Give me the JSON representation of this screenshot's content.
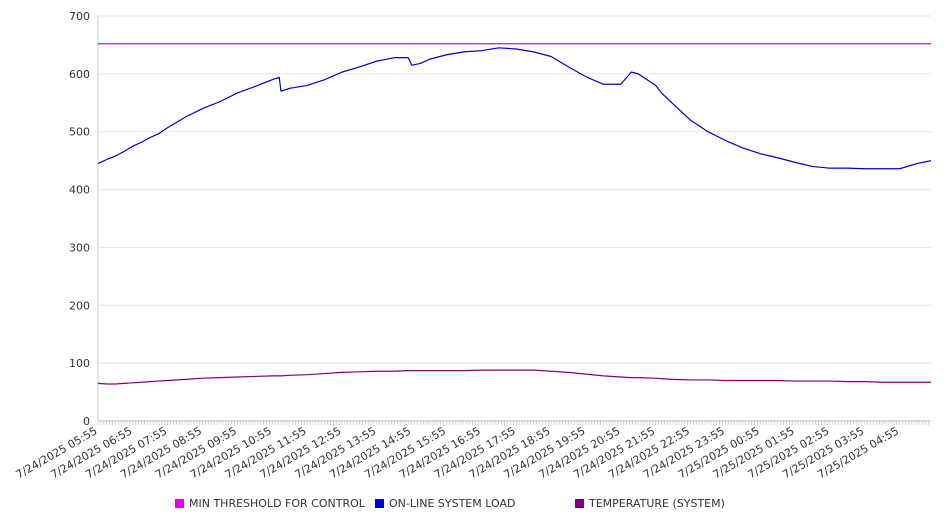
{
  "chart_data": {
    "type": "line",
    "title": "",
    "xlabel": "",
    "ylabel": "",
    "ylim": [
      0,
      700
    ],
    "yticks": [
      0,
      100,
      200,
      300,
      400,
      500,
      600,
      700
    ],
    "grid": true,
    "legend_position": "bottom",
    "x_ticks": [
      "7/24/2025 05:55",
      "7/24/2025 06:55",
      "7/24/2025 07:55",
      "7/24/2025 08:55",
      "7/24/2025 09:55",
      "7/24/2025 10:55",
      "7/24/2025 11:55",
      "7/24/2025 12:55",
      "7/24/2025 13:55",
      "7/24/2025 14:55",
      "7/24/2025 15:55",
      "7/24/2025 16:55",
      "7/24/2025 17:55",
      "7/24/2025 18:55",
      "7/24/2025 19:55",
      "7/24/2025 20:55",
      "7/24/2025 21:55",
      "7/24/2025 22:55",
      "7/24/2025 23:55",
      "7/25/2025 00:55",
      "7/25/2025 01:55",
      "7/25/2025 02:55",
      "7/25/2025 03:55",
      "7/25/2025 04:55"
    ],
    "x_hours": [
      0,
      0.25,
      0.5,
      0.75,
      1,
      1.25,
      1.5,
      1.75,
      2,
      2.5,
      3,
      3.5,
      4,
      4.5,
      5,
      5.2,
      5.25,
      5.5,
      6,
      6.5,
      7,
      7.5,
      8,
      8.5,
      8.9,
      9,
      9.25,
      9.5,
      10,
      10.5,
      11,
      11.5,
      12,
      12.5,
      13,
      13.5,
      14,
      14.5,
      15,
      15.3,
      15.5,
      16,
      16.2,
      16.5,
      17,
      17.5,
      18,
      18.5,
      19,
      19.5,
      20,
      20.5,
      21,
      21.5,
      22,
      22.5,
      23,
      23.5,
      23.9
    ],
    "series": [
      {
        "name": "MIN THRESHOLD FOR CONTROL",
        "color": "#e600e6",
        "values": [
          652,
          652,
          652,
          652,
          652,
          652,
          652,
          652,
          652,
          652,
          652,
          652,
          652,
          652,
          652,
          652,
          652,
          652,
          652,
          652,
          652,
          652,
          652,
          652,
          652,
          652,
          652,
          652,
          652,
          652,
          652,
          652,
          652,
          652,
          652,
          652,
          652,
          652,
          652,
          652,
          652,
          652,
          652,
          652,
          652,
          652,
          652,
          652,
          652,
          652,
          652,
          652,
          652,
          652,
          652,
          652,
          652,
          652,
          652
        ]
      },
      {
        "name": "ON-LINE SYSTEM LOAD",
        "color": "#0000cc",
        "values": [
          445,
          452,
          458,
          466,
          475,
          482,
          490,
          497,
          507,
          525,
          540,
          552,
          567,
          578,
          590,
          594,
          570,
          575,
          580,
          590,
          603,
          612,
          622,
          628,
          628,
          615,
          618,
          625,
          633,
          638,
          640,
          645,
          643,
          638,
          630,
          612,
          595,
          582,
          582,
          603,
          600,
          580,
          565,
          548,
          520,
          500,
          485,
          472,
          462,
          455,
          447,
          440,
          437,
          437,
          436,
          436,
          436,
          445,
          450
        ]
      },
      {
        "name": "TEMPERATURE (SYSTEM)",
        "color": "#800080",
        "values": [
          65,
          64,
          64,
          65,
          66,
          67,
          68,
          69,
          70,
          72,
          74,
          75,
          76,
          77,
          78,
          78,
          78,
          79,
          80,
          82,
          84,
          85,
          86,
          86,
          87,
          87,
          87,
          87,
          87,
          87,
          88,
          88,
          88,
          88,
          86,
          84,
          81,
          78,
          76,
          75,
          75,
          74,
          73,
          72,
          71,
          71,
          70,
          70,
          70,
          70,
          69,
          69,
          69,
          68,
          68,
          67,
          67,
          67,
          67
        ]
      }
    ]
  }
}
